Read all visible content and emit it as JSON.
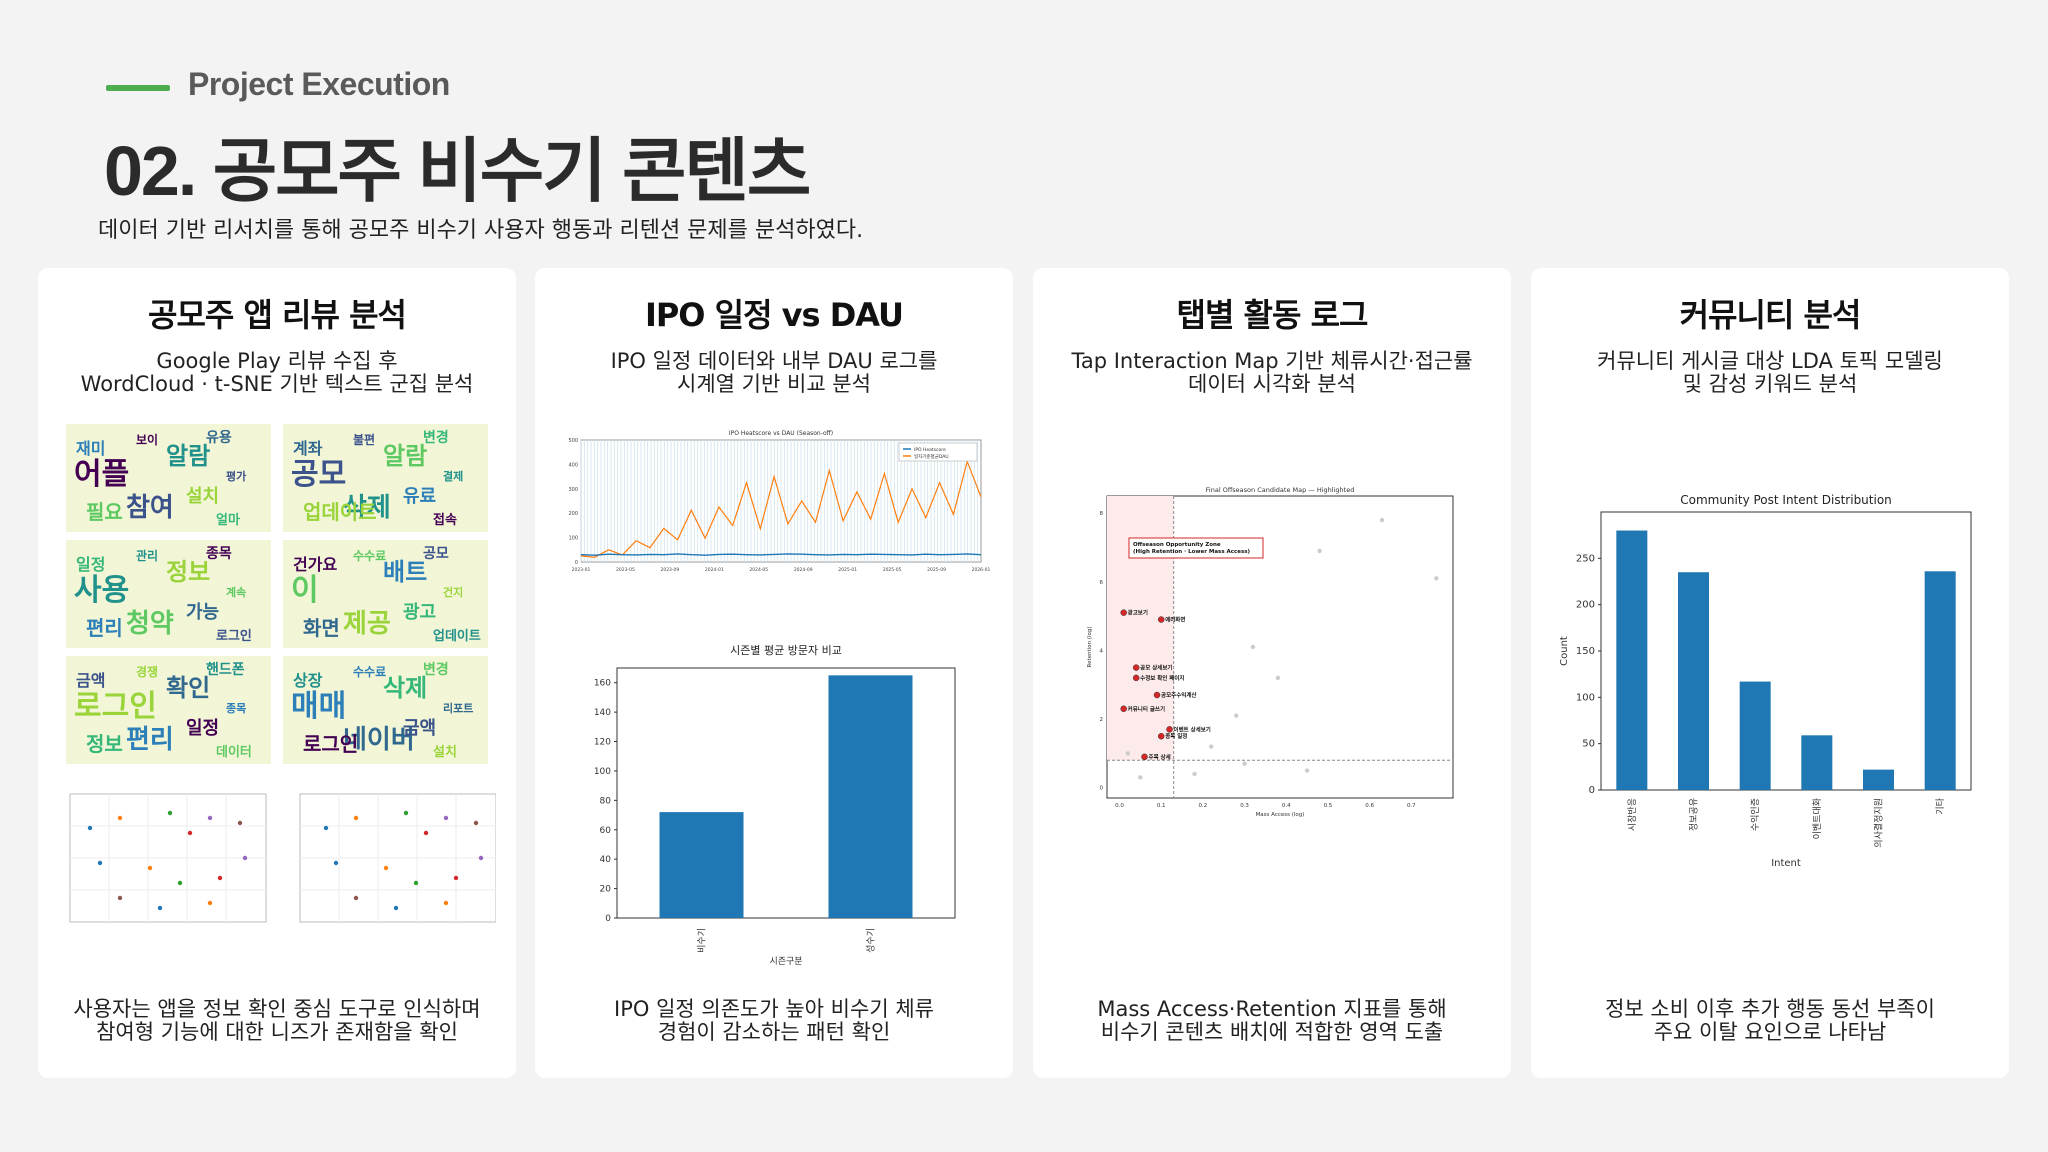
{
  "header": {
    "section_label": "Project Execution",
    "title": "02. 공모주 비수기 콘텐츠",
    "subtitle": "데이터 기반 리서치를 통해 공모주 비수기 사용자 행동과 리텐션 문제를 분석하였다."
  },
  "colors": {
    "accent_green": "#4cae4f",
    "bar_blue": "#1f77b4",
    "line_orange": "#ff7f0e",
    "highlight_red": "#d62728"
  },
  "cards": [
    {
      "title": "공모주 앱 리뷰 분석",
      "desc_line1": "Google Play 리뷰 수집 후",
      "desc_line2": "WordCloud · t-SNE 기반 텍스트 군집 분석",
      "foot_line1": "사용자는 앱을 정보 확인 중심 도구로 인식하며",
      "foot_line2": "참여형 기능에 대한 니즈가 존재함을 확인"
    },
    {
      "title": "IPO 일정 vs DAU",
      "desc_line1": "IPO 일정 데이터와 내부 DAU 로그를",
      "desc_line2": "시계열 기반 비교 분석",
      "foot_line1": "IPO 일정 의존도가 높아 비수기 체류",
      "foot_line2": "경험이 감소하는 패턴 확인"
    },
    {
      "title": "탭별 활동 로그",
      "desc_line1": "Tap Interaction Map 기반 체류시간·접근률",
      "desc_line2": "데이터 시각화 분석",
      "foot_line1": "Mass Access·Retention 지표를 통해",
      "foot_line2": "비수기 콘텐츠 배치에 적합한 영역 도출"
    },
    {
      "title": "커뮤니티 분석",
      "desc_line1": "커뮤니티 게시글 대상 LDA 토픽 모델링",
      "desc_line2": "및 감성 키워드 분석",
      "foot_line1": "정보 소비 이후 추가 행동 동선 부족이",
      "foot_line2": "주요 이탈 요인으로 나타남"
    }
  ],
  "wordcloud": {
    "panels": [
      {
        "words": [
          "어플",
          "참여",
          "알람",
          "필요",
          "설치",
          "재미",
          "유용",
          "얼마",
          "보이",
          "평가"
        ]
      },
      {
        "words": [
          "공모",
          "삭제",
          "알람",
          "업데이트",
          "유료",
          "계좌",
          "변경",
          "접속",
          "불편",
          "결제"
        ]
      },
      {
        "words": [
          "사용",
          "청약",
          "정보",
          "편리",
          "가능",
          "일정",
          "종목",
          "로그인",
          "관리",
          "계속"
        ]
      },
      {
        "words": [
          "이",
          "제공",
          "배트",
          "화면",
          "광고",
          "건가요",
          "공모",
          "업데이트",
          "수수료",
          "건지"
        ]
      },
      {
        "words": [
          "로그인",
          "편리",
          "확인",
          "정보",
          "일정",
          "금액",
          "핸드폰",
          "데이터",
          "경쟁",
          "종목"
        ]
      },
      {
        "words": [
          "매매",
          "네이버",
          "삭제",
          "로그인",
          "금액",
          "상장",
          "변경",
          "설치",
          "수수료",
          "리포트"
        ]
      }
    ]
  },
  "chart_data": [
    {
      "type": "line",
      "title": "IPO Heatscore vs DAU (Season-off)",
      "series": [
        {
          "name": "IPO Heatscore",
          "values": [
            30,
            28,
            32,
            30,
            29,
            31,
            30,
            33,
            30,
            28,
            31,
            32,
            30,
            29,
            31,
            33,
            32,
            30,
            29,
            31,
            30,
            32,
            31,
            30,
            29,
            32,
            30,
            31,
            33,
            30
          ]
        },
        {
          "name": "일자기준평균DAU",
          "values": [
            20,
            30,
            40,
            45,
            70,
            90,
            110,
            140,
            170,
            150,
            180,
            230,
            260,
            210,
            280,
            240,
            200,
            250,
            300,
            260,
            230,
            270,
            290,
            250,
            240,
            280,
            260,
            300,
            330,
            410
          ]
        }
      ],
      "x_ticks": [
        "2023-01",
        "2023-05",
        "2023-09",
        "2024-01",
        "2024-05",
        "2024-09",
        "2025-01",
        "2025-05",
        "2025-09",
        "2026-01"
      ],
      "y_ticks": [
        0,
        100,
        200,
        300,
        400,
        500
      ]
    },
    {
      "type": "bar",
      "title": "시즌별 평균 방문자 비교",
      "categories": [
        "비수기",
        "성수기"
      ],
      "values": [
        72,
        165
      ],
      "xlabel": "시즌구분",
      "ylim": [
        0,
        170
      ],
      "y_ticks": [
        0,
        20,
        40,
        60,
        80,
        100,
        120,
        140,
        160
      ]
    },
    {
      "type": "scatter",
      "title": "Final Offseason Candidate Map — Highlighted",
      "xlabel": "Mass Access (log)",
      "ylabel": "Retention (log)",
      "annotation": "Offseason Opportunity Zone\n(High Retention · Lower Mass Access)",
      "x_ticks": [
        0.0,
        0.1,
        0.2,
        0.3,
        0.4,
        0.5,
        0.6,
        0.7
      ],
      "y_ticks": [
        0,
        2,
        4,
        6,
        8
      ],
      "highlighted_points": [
        {
          "label": "광고보기",
          "x": 0.01,
          "y": 5.1
        },
        {
          "label": "에러화면",
          "x": 0.1,
          "y": 4.9
        },
        {
          "label": "공모 상세보기",
          "x": 0.04,
          "y": 3.5
        },
        {
          "label": "수정보 확인 페이지",
          "x": 0.04,
          "y": 3.2
        },
        {
          "label": "공모주수익계산",
          "x": 0.09,
          "y": 2.7
        },
        {
          "label": "커뮤니티 글쓰기",
          "x": 0.01,
          "y": 2.3
        },
        {
          "label": "이벤트 상세보기",
          "x": 0.12,
          "y": 1.7
        },
        {
          "label": "종목 일정",
          "x": 0.1,
          "y": 1.5
        },
        {
          "label": "주목 상세",
          "x": 0.06,
          "y": 0.9
        }
      ],
      "background_points": [
        {
          "x": 0.63,
          "y": 7.8
        },
        {
          "x": 0.76,
          "y": 6.1
        },
        {
          "x": 0.48,
          "y": 6.9
        },
        {
          "x": 0.32,
          "y": 4.1
        },
        {
          "x": 0.38,
          "y": 3.2
        },
        {
          "x": 0.28,
          "y": 2.1
        },
        {
          "x": 0.22,
          "y": 1.2
        },
        {
          "x": 0.45,
          "y": 0.5
        },
        {
          "x": 0.18,
          "y": 0.4
        },
        {
          "x": 0.05,
          "y": 0.3
        },
        {
          "x": 0.3,
          "y": 0.7
        },
        {
          "x": 0.02,
          "y": 1.0
        }
      ]
    },
    {
      "type": "bar",
      "title": "Community Post Intent Distribution",
      "categories": [
        "시장반응",
        "정보공유",
        "수익인증",
        "이벤트대화",
        "의사결정지원",
        "기타"
      ],
      "values": [
        280,
        235,
        117,
        59,
        22,
        236
      ],
      "xlabel": "Intent",
      "ylabel": "Count",
      "ylim": [
        0,
        300
      ],
      "y_ticks": [
        0,
        50,
        100,
        150,
        200,
        250
      ]
    }
  ]
}
